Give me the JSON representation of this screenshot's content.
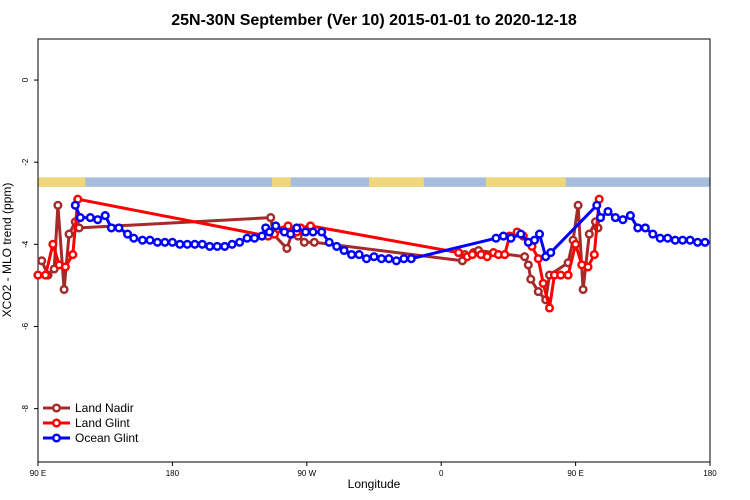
{
  "chart_data": {
    "type": "line",
    "title": "25N-30N September (Ver 10)   2015-01-01 to 2020-12-18",
    "xlabel": "Longitude",
    "ylabel": "XCO2 - MLO trend (ppm)",
    "xlim": [
      -90,
      180
    ],
    "ylim": [
      -9.3,
      1.0
    ],
    "x_ticks": [
      {
        "x": -90,
        "label": "90 E"
      },
      {
        "x": -36,
        "label": "180"
      },
      {
        "x": 18,
        "label": "90 W"
      },
      {
        "x": 72,
        "label": "0"
      },
      {
        "x": 126,
        "label": "90 E"
      },
      {
        "x": 180,
        "label": "180"
      }
    ],
    "y_ticks": [
      {
        "y": 0,
        "label": "0"
      },
      {
        "y": -2,
        "label": "-2"
      },
      {
        "y": -4,
        "label": "-4"
      },
      {
        "y": -6,
        "label": "-6"
      },
      {
        "y": -8,
        "label": "-8"
      }
    ],
    "land_mask_band": {
      "y_range": [
        -2.6,
        -2.37
      ],
      "ocean_color": "#a6bddb",
      "land_color": "#f0d77a",
      "land_segments": [
        [
          -90,
          -71
        ],
        [
          4,
          11.5
        ],
        [
          43,
          65
        ],
        [
          90,
          122
        ]
      ]
    },
    "legend": {
      "position": "bottom-left"
    },
    "series": [
      {
        "name": "Land Nadir",
        "color": "#a52a2a",
        "points": [
          [
            -88.5,
            -4.4
          ],
          [
            -86,
            -4.75
          ],
          [
            -83.5,
            -4.6
          ],
          [
            -82,
            -3.05
          ],
          [
            -79.5,
            -5.1
          ],
          [
            -77.5,
            -3.75
          ],
          [
            -75,
            -3.45
          ],
          [
            -73.5,
            -3.6
          ],
          [
            3.5,
            -3.35
          ],
          [
            4.5,
            -3.75
          ],
          [
            10,
            -4.1
          ],
          [
            12,
            -3.75
          ],
          [
            14.5,
            -3.8
          ],
          [
            17,
            -3.95
          ],
          [
            21,
            -3.95
          ],
          [
            80.5,
            -4.4
          ],
          [
            81.5,
            -4.25
          ],
          [
            85,
            -4.2
          ],
          [
            87,
            -4.15
          ],
          [
            105.5,
            -4.3
          ],
          [
            107,
            -4.5
          ],
          [
            108,
            -4.85
          ],
          [
            111,
            -5.15
          ],
          [
            114,
            -5.35
          ],
          [
            115.5,
            -4.75
          ],
          [
            123,
            -4.45
          ],
          [
            125,
            -3.9
          ],
          [
            127,
            -3.05
          ],
          [
            129,
            -5.1
          ],
          [
            131.5,
            -3.75
          ],
          [
            134,
            -3.45
          ],
          [
            135,
            -3.6
          ]
        ]
      },
      {
        "name": "Land Glint",
        "color": "#ff0000",
        "points": [
          [
            -90,
            -4.75
          ],
          [
            -87,
            -4.75
          ],
          [
            -84,
            -4.0
          ],
          [
            -81.5,
            -4.5
          ],
          [
            -79,
            -4.55
          ],
          [
            -76,
            -4.25
          ],
          [
            -74,
            -2.9
          ],
          [
            2.5,
            -3.8
          ],
          [
            5,
            -3.75
          ],
          [
            8.5,
            -3.65
          ],
          [
            10.5,
            -3.55
          ],
          [
            14,
            -3.7
          ],
          [
            15.5,
            -3.6
          ],
          [
            19.5,
            -3.55
          ],
          [
            79,
            -4.2
          ],
          [
            82.5,
            -4.3
          ],
          [
            84.5,
            -4.25
          ],
          [
            88,
            -4.25
          ],
          [
            90.5,
            -4.3
          ],
          [
            93,
            -4.2
          ],
          [
            95,
            -4.25
          ],
          [
            97.5,
            -4.25
          ],
          [
            99.5,
            -3.8
          ],
          [
            102.5,
            -3.7
          ],
          [
            105,
            -3.8
          ],
          [
            108.5,
            -4.05
          ],
          [
            111,
            -4.35
          ],
          [
            113,
            -4.95
          ],
          [
            115.5,
            -5.55
          ],
          [
            117.5,
            -4.75
          ],
          [
            120,
            -4.75
          ],
          [
            123,
            -4.75
          ],
          [
            126,
            -4.0
          ],
          [
            128.5,
            -4.5
          ],
          [
            131,
            -4.55
          ],
          [
            133.5,
            -4.25
          ],
          [
            135.5,
            -2.9
          ]
        ]
      },
      {
        "name": "Ocean Glint",
        "color": "#0000ff",
        "points": [
          [
            -75,
            -3.05
          ],
          [
            -73,
            -3.35
          ],
          [
            -69,
            -3.35
          ],
          [
            -66,
            -3.4
          ],
          [
            -63,
            -3.3
          ],
          [
            -60.5,
            -3.6
          ],
          [
            -57.5,
            -3.6
          ],
          [
            -54,
            -3.75
          ],
          [
            -51.5,
            -3.85
          ],
          [
            -48,
            -3.9
          ],
          [
            -45,
            -3.9
          ],
          [
            -42,
            -3.95
          ],
          [
            -39,
            -3.95
          ],
          [
            -36,
            -3.95
          ],
          [
            -33,
            -4.0
          ],
          [
            -30,
            -4.0
          ],
          [
            -27,
            -4.0
          ],
          [
            -24,
            -4.0
          ],
          [
            -21,
            -4.05
          ],
          [
            -18,
            -4.05
          ],
          [
            -15,
            -4.05
          ],
          [
            -12,
            -4.0
          ],
          [
            -9,
            -3.95
          ],
          [
            -6,
            -3.85
          ],
          [
            -3,
            -3.85
          ],
          [
            0,
            -3.8
          ],
          [
            1.5,
            -3.6
          ],
          [
            3,
            -3.7
          ],
          [
            5.5,
            -3.55
          ],
          [
            9,
            -3.7
          ],
          [
            11.5,
            -3.75
          ],
          [
            14,
            -3.6
          ],
          [
            17.5,
            -3.7
          ],
          [
            20.5,
            -3.7
          ],
          [
            24,
            -3.7
          ],
          [
            27,
            -3.95
          ],
          [
            30,
            -4.05
          ],
          [
            33,
            -4.15
          ],
          [
            36,
            -4.25
          ],
          [
            39,
            -4.25
          ],
          [
            42,
            -4.35
          ],
          [
            45,
            -4.3
          ],
          [
            48,
            -4.35
          ],
          [
            51,
            -4.35
          ],
          [
            54,
            -4.4
          ],
          [
            57,
            -4.35
          ],
          [
            60,
            -4.35
          ],
          [
            94,
            -3.85
          ],
          [
            97,
            -3.8
          ],
          [
            100,
            -3.85
          ],
          [
            104,
            -3.75
          ],
          [
            107,
            -3.95
          ],
          [
            109.5,
            -3.9
          ],
          [
            111.5,
            -3.75
          ],
          [
            114,
            -4.3
          ],
          [
            116,
            -4.2
          ],
          [
            134.5,
            -3.05
          ],
          [
            136,
            -3.35
          ],
          [
            139,
            -3.2
          ],
          [
            142,
            -3.35
          ],
          [
            145,
            -3.4
          ],
          [
            148,
            -3.3
          ],
          [
            151,
            -3.6
          ],
          [
            154,
            -3.6
          ],
          [
            157,
            -3.75
          ],
          [
            160,
            -3.85
          ],
          [
            163,
            -3.85
          ],
          [
            166,
            -3.9
          ],
          [
            169,
            -3.9
          ],
          [
            172,
            -3.9
          ],
          [
            175,
            -3.95
          ],
          [
            178,
            -3.95
          ]
        ]
      }
    ]
  }
}
